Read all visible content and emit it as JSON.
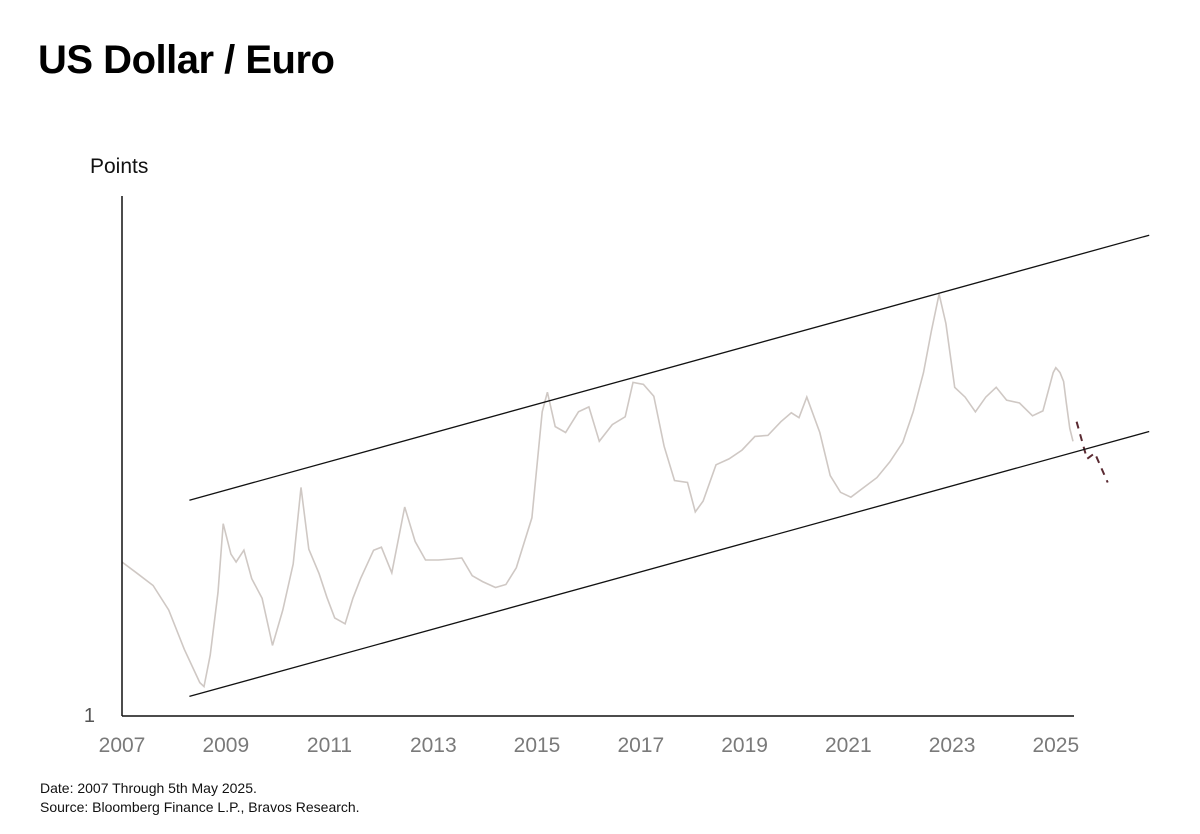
{
  "chart_data": {
    "type": "line",
    "title": "US Dollar / Euro",
    "ylabel": "Points",
    "y_tick_labels": [
      "1"
    ],
    "x_ticks": [
      "2007",
      "2009",
      "2011",
      "2013",
      "2015",
      "2017",
      "2019",
      "2021",
      "2023",
      "2025"
    ],
    "xlim": [
      2007.0,
      2025.35
    ],
    "ylim": [
      0.6,
      1.13
    ],
    "series": [
      {
        "style": "solid",
        "color": "#cfc8c4",
        "points": [
          [
            2007.0,
            0.757
          ],
          [
            2007.3,
            0.745
          ],
          [
            2007.6,
            0.733
          ],
          [
            2007.9,
            0.708
          ],
          [
            2008.2,
            0.668
          ],
          [
            2008.5,
            0.634
          ],
          [
            2008.58,
            0.63
          ],
          [
            2008.7,
            0.662
          ],
          [
            2008.85,
            0.726
          ],
          [
            2008.95,
            0.796
          ],
          [
            2009.1,
            0.765
          ],
          [
            2009.2,
            0.757
          ],
          [
            2009.35,
            0.769
          ],
          [
            2009.5,
            0.74
          ],
          [
            2009.7,
            0.72
          ],
          [
            2009.9,
            0.672
          ],
          [
            2010.1,
            0.708
          ],
          [
            2010.3,
            0.755
          ],
          [
            2010.45,
            0.833
          ],
          [
            2010.6,
            0.77
          ],
          [
            2010.8,
            0.745
          ],
          [
            2010.95,
            0.721
          ],
          [
            2011.1,
            0.7
          ],
          [
            2011.3,
            0.694
          ],
          [
            2011.45,
            0.72
          ],
          [
            2011.6,
            0.74
          ],
          [
            2011.85,
            0.769
          ],
          [
            2012.0,
            0.772
          ],
          [
            2012.2,
            0.746
          ],
          [
            2012.45,
            0.813
          ],
          [
            2012.65,
            0.778
          ],
          [
            2012.85,
            0.759
          ],
          [
            2013.1,
            0.759
          ],
          [
            2013.35,
            0.76
          ],
          [
            2013.55,
            0.761
          ],
          [
            2013.75,
            0.743
          ],
          [
            2013.95,
            0.737
          ],
          [
            2014.2,
            0.731
          ],
          [
            2014.4,
            0.734
          ],
          [
            2014.6,
            0.751
          ],
          [
            2014.9,
            0.802
          ],
          [
            2015.1,
            0.91
          ],
          [
            2015.2,
            0.93
          ],
          [
            2015.35,
            0.895
          ],
          [
            2015.55,
            0.889
          ],
          [
            2015.8,
            0.91
          ],
          [
            2016.0,
            0.915
          ],
          [
            2016.2,
            0.88
          ],
          [
            2016.45,
            0.897
          ],
          [
            2016.7,
            0.905
          ],
          [
            2016.85,
            0.94
          ],
          [
            2017.05,
            0.938
          ],
          [
            2017.25,
            0.926
          ],
          [
            2017.45,
            0.875
          ],
          [
            2017.65,
            0.84
          ],
          [
            2017.9,
            0.838
          ],
          [
            2018.05,
            0.808
          ],
          [
            2018.2,
            0.819
          ],
          [
            2018.45,
            0.856
          ],
          [
            2018.7,
            0.862
          ],
          [
            2018.95,
            0.871
          ],
          [
            2019.2,
            0.885
          ],
          [
            2019.45,
            0.886
          ],
          [
            2019.7,
            0.9
          ],
          [
            2019.9,
            0.909
          ],
          [
            2020.05,
            0.904
          ],
          [
            2020.2,
            0.925
          ],
          [
            2020.45,
            0.889
          ],
          [
            2020.65,
            0.845
          ],
          [
            2020.85,
            0.828
          ],
          [
            2021.05,
            0.823
          ],
          [
            2021.3,
            0.833
          ],
          [
            2021.55,
            0.843
          ],
          [
            2021.8,
            0.859
          ],
          [
            2022.05,
            0.879
          ],
          [
            2022.25,
            0.91
          ],
          [
            2022.45,
            0.95
          ],
          [
            2022.6,
            0.992
          ],
          [
            2022.75,
            1.03
          ],
          [
            2022.88,
            1.0
          ],
          [
            2023.05,
            0.935
          ],
          [
            2023.25,
            0.925
          ],
          [
            2023.45,
            0.91
          ],
          [
            2023.65,
            0.925
          ],
          [
            2023.85,
            0.935
          ],
          [
            2024.05,
            0.922
          ],
          [
            2024.3,
            0.919
          ],
          [
            2024.55,
            0.906
          ],
          [
            2024.75,
            0.911
          ],
          [
            2024.95,
            0.95
          ],
          [
            2025.0,
            0.955
          ],
          [
            2025.08,
            0.95
          ],
          [
            2025.15,
            0.941
          ],
          [
            2025.2,
            0.92
          ],
          [
            2025.27,
            0.893
          ],
          [
            2025.33,
            0.88
          ]
        ]
      },
      {
        "style": "dashed",
        "color": "#5a2a32",
        "points": [
          [
            2025.4,
            0.9
          ],
          [
            2025.6,
            0.862
          ],
          [
            2025.75,
            0.868
          ],
          [
            2026.0,
            0.838
          ]
        ]
      },
      {
        "style": "solid",
        "color": "#111111",
        "points": [
          [
            2008.3,
            0.82
          ],
          [
            2026.8,
            1.09
          ]
        ]
      },
      {
        "style": "solid",
        "color": "#111111",
        "points": [
          [
            2008.3,
            0.62
          ],
          [
            2026.8,
            0.89
          ]
        ]
      }
    ]
  },
  "footer": {
    "date_line": "Date: 2007 Through 5th May 2025.",
    "source_line": "Source: Bloomberg Finance L.P., Bravos Research."
  }
}
